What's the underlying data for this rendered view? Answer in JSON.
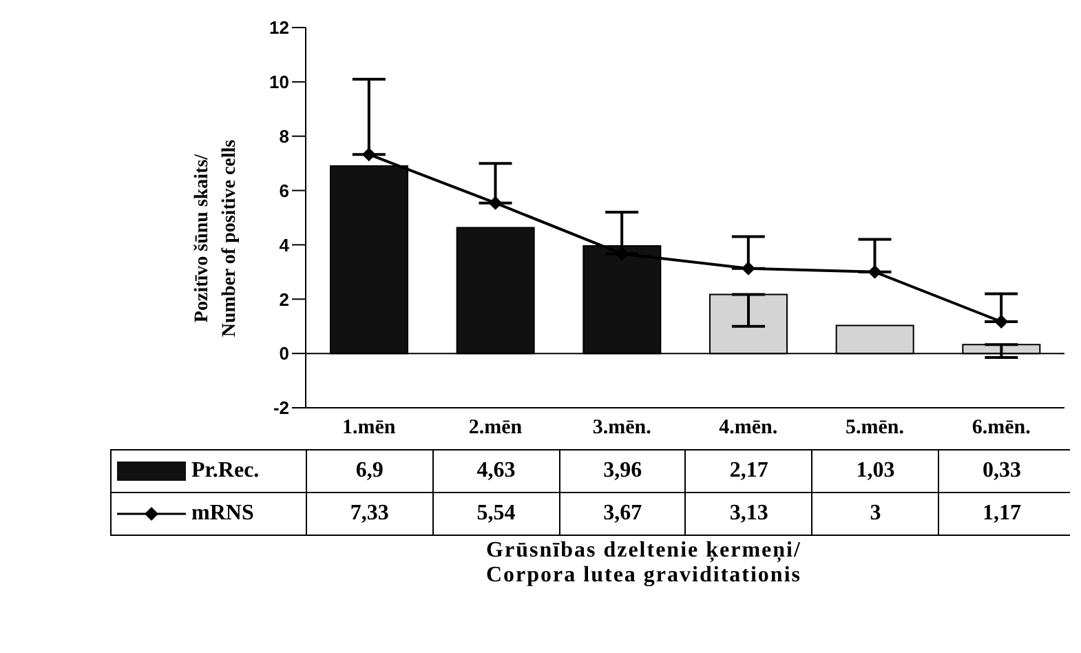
{
  "chart_data": {
    "type": "bar",
    "ylabel": "Pozitīvo šūnu skaits/Number of positive cells",
    "xlabel": "Grūsnības dzeltenie ķermeņi/Corpora lutea graviditationis",
    "categories": [
      "1.mēn",
      "2.mēn",
      "3.mēn.",
      "4.mēn.",
      "5.mēn.",
      "6.mēn."
    ],
    "series": [
      {
        "name": "Pr.Rec.",
        "color": "#111111",
        "colors": [
          "#111111",
          "#111111",
          "#111111",
          "#d4d4d4",
          "#d4d4d4",
          "#d4d4d4"
        ],
        "values": [
          6.9,
          4.63,
          3.96,
          2.17,
          1.03,
          0.33
        ],
        "value_labels": [
          "6,9",
          "4,63",
          "3,96",
          "2,17",
          "1,03",
          "0,33"
        ],
        "errors": [
          null,
          null,
          null,
          [
            1.0,
            2.17
          ],
          null,
          [
            -0.15,
            0.33
          ]
        ]
      },
      {
        "name": "mRNS",
        "type": "line",
        "color": "#000000",
        "marker": "diamond",
        "values": [
          7.33,
          5.54,
          3.67,
          3.13,
          3,
          1.17
        ],
        "value_labels": [
          "7,33",
          "5,54",
          "3,67",
          "3,13",
          "3",
          "1,17"
        ],
        "errors": [
          [
            7.33,
            10.1
          ],
          [
            5.54,
            7.0
          ],
          [
            3.67,
            5.2
          ],
          [
            3.13,
            4.3
          ],
          [
            3,
            4.2
          ],
          [
            1.17,
            2.2
          ]
        ]
      }
    ],
    "ylim": [
      -2,
      12
    ],
    "yticks": [
      -2,
      0,
      2,
      4,
      6,
      8,
      10,
      12
    ],
    "grid": false,
    "legend": "bottom",
    "ref_lines": [
      {
        "axis": "y",
        "value": 0,
        "color": "#000000"
      }
    ]
  }
}
